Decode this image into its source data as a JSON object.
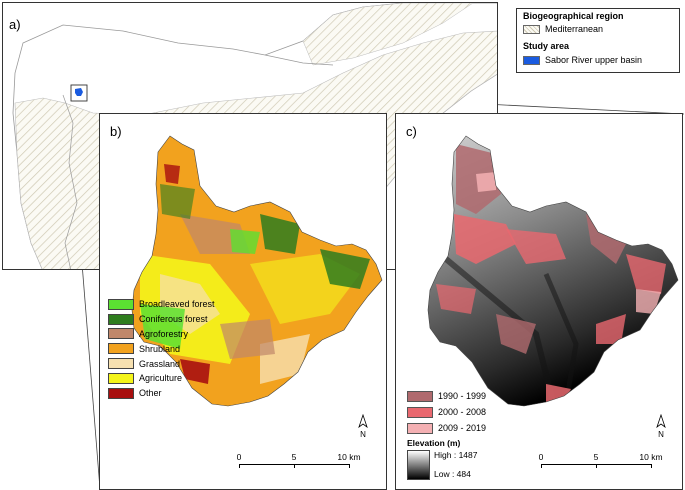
{
  "panel_a": {
    "label": "a)",
    "legend": {
      "region_heading": "Biogeographical region",
      "region_item": "Mediterranean",
      "study_heading": "Study area",
      "study_item": "Sabor River upper basin",
      "colors": {
        "mediterranean_hatch": "#cfc9b3",
        "study_area": "#1a5be0"
      }
    }
  },
  "panel_b": {
    "label": "b)",
    "legend": [
      {
        "label": "Broadleaved forest",
        "color": "#5be032"
      },
      {
        "label": "Coniferous forest",
        "color": "#2f7d1e"
      },
      {
        "label": "Agroforestry",
        "color": "#c0876a"
      },
      {
        "label": "Shrubland",
        "color": "#f2a21e"
      },
      {
        "label": "Grassland",
        "color": "#f6e0b0"
      },
      {
        "label": "Agriculture",
        "color": "#f4f41a"
      },
      {
        "label": "Other",
        "color": "#a80f0f"
      }
    ],
    "scale": {
      "ticks": [
        "0",
        "5",
        "10 km"
      ]
    },
    "north": "N"
  },
  "panel_c": {
    "label": "c)",
    "legend": [
      {
        "label": "1990 - 1999",
        "color": "#b06a6e"
      },
      {
        "label": "2000 - 2008",
        "color": "#e9686f"
      },
      {
        "label": "2009 - 2019",
        "color": "#f4b0b3"
      }
    ],
    "elevation": {
      "title": "Elevation (m)",
      "high": "High : 1487",
      "low": "Low : 484"
    },
    "scale": {
      "ticks": [
        "0",
        "5",
        "10 km"
      ]
    },
    "north": "N"
  }
}
